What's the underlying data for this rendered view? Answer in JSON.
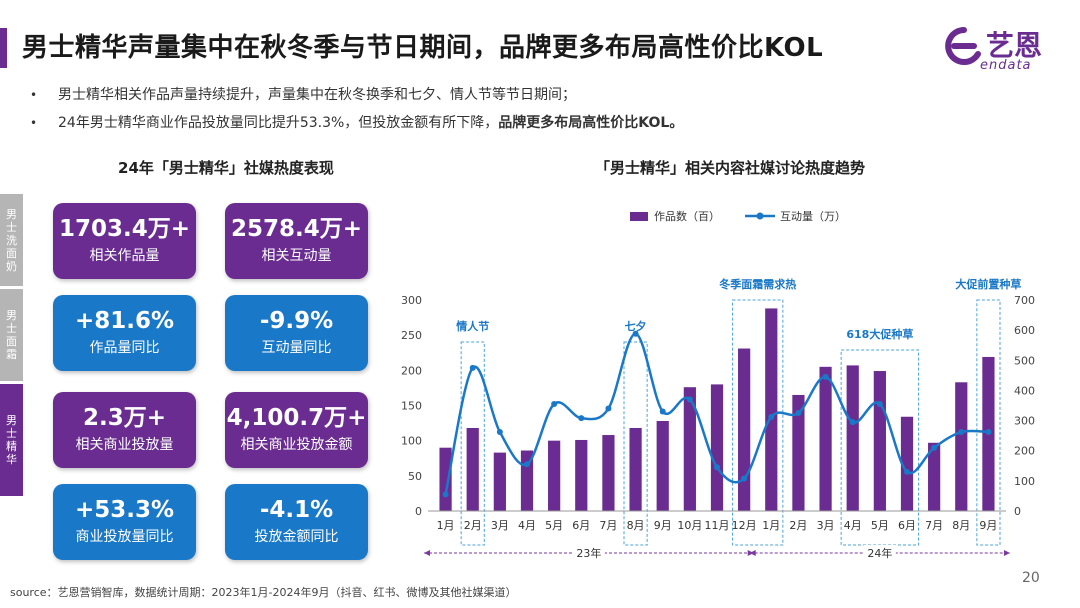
{
  "header": {
    "title": "男士精华声量集中在秋冬季与节日期间，品牌更多布局高性价比KOL",
    "logo_cn": "艺恩",
    "logo_en": "endata"
  },
  "bullets": [
    {
      "dot": "•",
      "text": "男士精华相关作品声量持续提升，声量集中在秋冬换季和七夕、情人节等节日期间；",
      "bold": ""
    },
    {
      "dot": "•",
      "text": "24年男士精华商业作品投放量同比提升53.3%，但投放金额有所下降，",
      "bold": "品牌更多布局高性价比KOL。"
    }
  ],
  "left_panel": {
    "title": "24年「男士精华」社媒热度表现",
    "tabs": [
      "男士洗面奶",
      "男士面霜",
      "男士精华"
    ],
    "cards": [
      {
        "value": "1703.4万+",
        "label": "相关作品量"
      },
      {
        "value": "2578.4万+",
        "label": "相关互动量"
      },
      {
        "value": "+81.6%",
        "label": "作品量同比"
      },
      {
        "value": "-9.9%",
        "label": "互动量同比"
      },
      {
        "value": "2.3万+",
        "label": "相关商业投放量"
      },
      {
        "value": "4,100.7万+",
        "label": "相关商业投放金额"
      },
      {
        "value": "+53.3%",
        "label": "商业投放量同比"
      },
      {
        "value": "-4.1%",
        "label": "投放金额同比"
      }
    ]
  },
  "colors": {
    "purple": "#6a2c91",
    "blue": "#1a78c8"
  },
  "chart_data": {
    "type": "bar",
    "title": "「男士精华」相关内容社媒讨论热度趋势",
    "categories": [
      "1月",
      "2月",
      "3月",
      "4月",
      "5月",
      "6月",
      "7月",
      "8月",
      "9月",
      "10月",
      "11月",
      "12月",
      "1月",
      "2月",
      "3月",
      "4月",
      "5月",
      "6月",
      "7月",
      "8月",
      "9月"
    ],
    "year_groups": [
      {
        "label": "23年",
        "start": 0,
        "end": 11
      },
      {
        "label": "24年",
        "start": 12,
        "end": 20
      }
    ],
    "series": [
      {
        "name": "作品数（百）",
        "type": "bar",
        "axis": "left",
        "color": "#6a2c91",
        "values": [
          90,
          118,
          83,
          86,
          100,
          101,
          108,
          118,
          128,
          176,
          180,
          231,
          288,
          165,
          205,
          207,
          199,
          134,
          97,
          183,
          219
        ]
      },
      {
        "name": "互动量（万）",
        "type": "line",
        "axis": "right",
        "color": "#1a78c8",
        "values": [
          55,
          475,
          262,
          155,
          355,
          308,
          340,
          588,
          330,
          370,
          145,
          108,
          312,
          325,
          445,
          295,
          355,
          130,
          210,
          262,
          262
        ]
      }
    ],
    "left_axis": {
      "min": 0,
      "max": 300,
      "ticks": [
        0,
        50,
        100,
        150,
        200,
        250,
        300
      ]
    },
    "right_axis": {
      "min": 0,
      "max": 700,
      "ticks": [
        0,
        100,
        200,
        300,
        400,
        500,
        600,
        700
      ]
    },
    "annotations": [
      {
        "label": "情人节",
        "from": 1,
        "to": 1
      },
      {
        "label": "七夕",
        "from": 7,
        "to": 7
      },
      {
        "label": "冬季面霜需求热",
        "from": 11,
        "to": 12
      },
      {
        "label": "618大促种草",
        "from": 15,
        "to": 17
      },
      {
        "label": "大促前置种草",
        "from": 20,
        "to": 20
      }
    ],
    "legend_position": "top"
  },
  "footer": {
    "source": "source：艺恩营销智库，数据统计周期：2023年1月-2024年9月（抖音、红书、微博及其他社媒渠道）",
    "page": "20"
  }
}
